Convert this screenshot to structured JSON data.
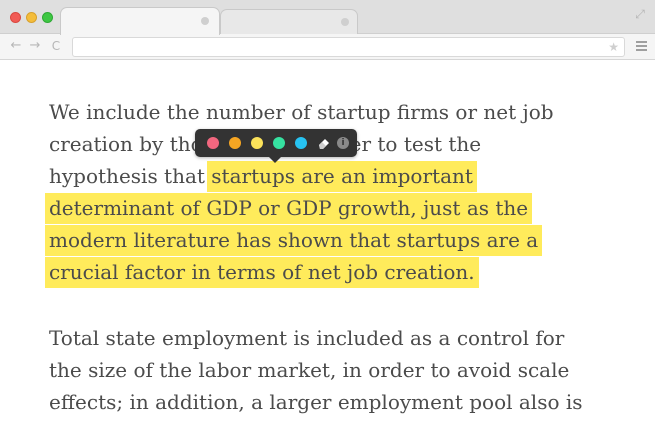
{
  "browser": {
    "expand_glyph": "⤢",
    "nav": {
      "back": "←",
      "forward": "→",
      "reload": "C"
    },
    "address_bar": {
      "value": "",
      "star": "★"
    }
  },
  "article": {
    "paragraph1": {
      "lines": [
        {
          "pre": "We include the number of startup firms or net job",
          "hl": ""
        },
        {
          "pre": "creation by those firms in order to test the",
          "hl": ""
        },
        {
          "pre": "hypothesis that ",
          "hl": "startups are an important"
        },
        {
          "pre": "",
          "hl": "determinant of GDP or GDP growth, just as the"
        },
        {
          "pre": "",
          "hl": "modern literature has shown that startups are a"
        },
        {
          "pre": "",
          "hl": "crucial factor in terms of net job creation."
        }
      ]
    },
    "paragraph2": {
      "lines": [
        "Total state employment is included as a control for",
        "the size of the labor market, in order to avoid scale",
        "effects; in addition, a larger employment pool also is"
      ]
    }
  },
  "highlight_popup": {
    "colors": [
      {
        "name": "pink",
        "hex": "#f2677f"
      },
      {
        "name": "orange",
        "hex": "#f6a623"
      },
      {
        "name": "yellow",
        "hex": "#fbe25a"
      },
      {
        "name": "green",
        "hex": "#36e2a1"
      },
      {
        "name": "blue",
        "hex": "#27c3f2"
      }
    ],
    "eraser_icon": "eraser-icon",
    "info_icon": "i"
  },
  "colors": {
    "highlight": "#ffeb5b",
    "text": "#4b4b4b",
    "popup_bg": "#333333"
  }
}
